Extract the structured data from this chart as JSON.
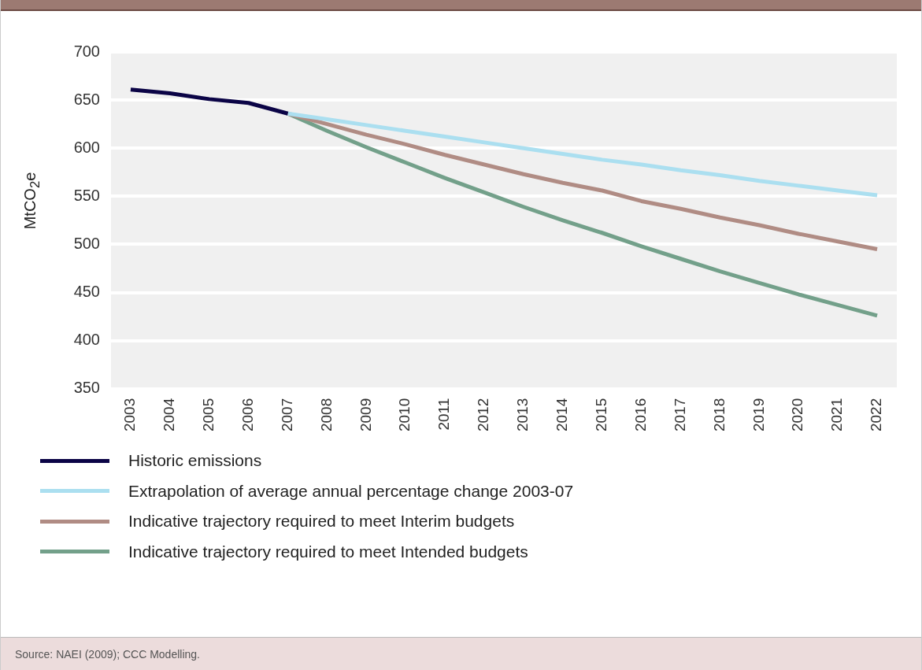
{
  "chart_data": {
    "type": "line",
    "ylabel": "MtCO$_{2}$e",
    "categories": [
      "2003",
      "2004",
      "2005",
      "2006",
      "2007",
      "2008",
      "2009",
      "2010",
      "2011",
      "2012",
      "2013",
      "2014",
      "2015",
      "2016",
      "2017",
      "2018",
      "2019",
      "2020",
      "2021",
      "2022"
    ],
    "series": [
      {
        "name": "Historic emissions",
        "color": "#0b0446",
        "values": [
          661,
          657,
          651,
          647,
          636,
          null,
          null,
          null,
          null,
          null,
          null,
          null,
          null,
          null,
          null,
          null,
          null,
          null,
          null,
          null
        ]
      },
      {
        "name": "Extrapolation of average annual percentage change 2003-07",
        "color": "#abdff0",
        "values": [
          null,
          null,
          null,
          null,
          636,
          630,
          624,
          618,
          612,
          606,
          600,
          594,
          588,
          583,
          577,
          572,
          566,
          561,
          556,
          551
        ]
      },
      {
        "name": "Indicative trajectory required to meet Interim budgets",
        "color": "#b08c84",
        "values": [
          null,
          null,
          null,
          null,
          636,
          625,
          614,
          604,
          593,
          583,
          573,
          564,
          556,
          545,
          537,
          528,
          520,
          511,
          503,
          495
        ]
      },
      {
        "name": "Indicative trajectory required to meet Intended budgets",
        "color": "#73a08a",
        "values": [
          null,
          null,
          null,
          null,
          636,
          618,
          601,
          585,
          569,
          554,
          539,
          525,
          512,
          498,
          485,
          472,
          460,
          448,
          437,
          426
        ]
      }
    ],
    "ylim": [
      350,
      700
    ],
    "yticks": [
      350,
      400,
      450,
      500,
      550,
      600,
      650,
      700
    ],
    "grid": "y",
    "legend": "bottom",
    "marker": "none",
    "line_style": "solid",
    "annotations": [
      "Source: NAEI (2009); CCC Modelling."
    ]
  }
}
